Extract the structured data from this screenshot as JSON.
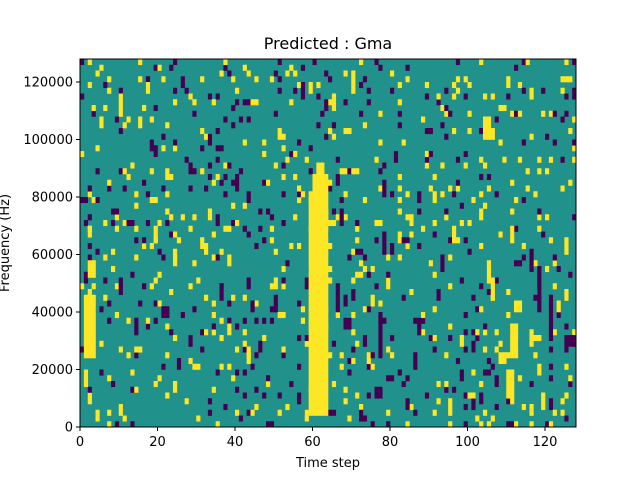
{
  "chart_data": {
    "type": "heatmap",
    "title": "Predicted : Gma",
    "xlabel": "Time step",
    "ylabel": "Frequency (Hz)",
    "xlim": [
      0,
      128
    ],
    "ylim": [
      0,
      128000
    ],
    "xticks": [
      0,
      20,
      40,
      60,
      80,
      100,
      120
    ],
    "yticks": [
      0,
      20000,
      40000,
      60000,
      80000,
      100000,
      120000
    ],
    "n_time_steps": 128,
    "n_freq_bins": 64,
    "values_encoding": "binary spectrogram mask: 0 = background, +1 = yellow cell, -1 = dark purple cell",
    "colors": {
      "background": "#21918c",
      "positive": "#fde725",
      "negative": "#440154"
    },
    "segments": [
      {
        "value": 1,
        "t": [
          59,
          64
        ],
        "f": [
          4000,
          82000
        ]
      },
      {
        "value": 1,
        "t": [
          60,
          64
        ],
        "f": [
          82000,
          88000
        ]
      },
      {
        "value": 1,
        "t": [
          61,
          63
        ],
        "f": [
          88000,
          92000
        ]
      },
      {
        "value": 1,
        "t": [
          58,
          59
        ],
        "f": [
          2000,
          6000
        ]
      },
      {
        "value": -1,
        "t": [
          77,
          78
        ],
        "f": [
          24000,
          40000
        ]
      },
      {
        "value": -1,
        "t": [
          78,
          79
        ],
        "f": [
          60000,
          68000
        ]
      },
      {
        "value": -1,
        "t": [
          118,
          119
        ],
        "f": [
          40000,
          56000
        ]
      },
      {
        "value": -1,
        "t": [
          121,
          122
        ],
        "f": [
          30000,
          46000
        ]
      },
      {
        "value": -1,
        "t": [
          116,
          117
        ],
        "f": [
          54000,
          62000
        ]
      },
      {
        "value": -1,
        "t": [
          125,
          128
        ],
        "f": [
          28000,
          32000
        ]
      },
      {
        "value": -1,
        "t": [
          21,
          23
        ],
        "f": [
          38000,
          42000
        ]
      },
      {
        "value": -1,
        "t": [
          66,
          67
        ],
        "f": [
          42000,
          50000
        ]
      },
      {
        "value": -1,
        "t": [
          70,
          71
        ],
        "f": [
          44000,
          48000
        ]
      },
      {
        "value": -1,
        "t": [
          73,
          74
        ],
        "f": [
          28000,
          32000
        ]
      },
      {
        "value": -1,
        "t": [
          68,
          70
        ],
        "f": [
          34000,
          38000
        ]
      },
      {
        "value": -1,
        "t": [
          76,
          78
        ],
        "f": [
          10000,
          14000
        ]
      },
      {
        "value": -1,
        "t": [
          80,
          81
        ],
        "f": [
          60000,
          64000
        ]
      },
      {
        "value": -1,
        "t": [
          72,
          73
        ],
        "f": [
          2000,
          6000
        ]
      },
      {
        "value": 1,
        "t": [
          1,
          4
        ],
        "f": [
          24000,
          46000
        ]
      },
      {
        "value": 1,
        "t": [
          2,
          4
        ],
        "f": [
          52000,
          58000
        ]
      },
      {
        "value": 1,
        "t": [
          1,
          2
        ],
        "f": [
          14000,
          20000
        ]
      },
      {
        "value": 1,
        "t": [
          2,
          3
        ],
        "f": [
          66000,
          70000
        ]
      },
      {
        "value": 1,
        "t": [
          111,
          113
        ],
        "f": [
          24000,
          36000
        ]
      },
      {
        "value": 1,
        "t": [
          112,
          114
        ],
        "f": [
          40000,
          44000
        ]
      },
      {
        "value": 1,
        "t": [
          110,
          112
        ],
        "f": [
          10000,
          20000
        ]
      },
      {
        "value": 1,
        "t": [
          111,
          112
        ],
        "f": [
          64000,
          70000
        ]
      },
      {
        "value": 1,
        "t": [
          106,
          107
        ],
        "f": [
          44000,
          52000
        ]
      },
      {
        "value": 1,
        "t": [
          105,
          106
        ],
        "f": [
          50000,
          56000
        ]
      },
      {
        "value": 1,
        "t": [
          116,
          117
        ],
        "f": [
          28000,
          34000
        ]
      },
      {
        "value": 1,
        "t": [
          108,
          110
        ],
        "f": [
          22000,
          26000
        ]
      },
      {
        "value": 1,
        "t": [
          104,
          106
        ],
        "f": [
          100000,
          108000
        ]
      },
      {
        "value": 1,
        "t": [
          70,
          71
        ],
        "f": [
          116000,
          124000
        ]
      },
      {
        "value": 1,
        "t": [
          65,
          66
        ],
        "f": [
          110000,
          116000
        ]
      },
      {
        "value": 1,
        "t": [
          43,
          44
        ],
        "f": [
          22000,
          28000
        ]
      },
      {
        "value": 1,
        "t": [
          24,
          25
        ],
        "f": [
          56000,
          62000
        ]
      },
      {
        "value": 1,
        "t": [
          19,
          20
        ],
        "f": [
          64000,
          70000
        ]
      },
      {
        "value": 1,
        "t": [
          5,
          6
        ],
        "f": [
          104000,
          108000
        ]
      },
      {
        "value": 1,
        "t": [
          10,
          11
        ],
        "f": [
          110000,
          116000
        ]
      },
      {
        "value": 1,
        "t": [
          17,
          18
        ],
        "f": [
          116000,
          120000
        ]
      },
      {
        "value": 1,
        "t": [
          38,
          39
        ],
        "f": [
          32000,
          36000
        ]
      },
      {
        "value": 1,
        "t": [
          31,
          32
        ],
        "f": [
          62000,
          66000
        ]
      },
      {
        "value": 1,
        "t": [
          96,
          97
        ],
        "f": [
          64000,
          70000
        ]
      },
      {
        "value": 1,
        "t": [
          98,
          99
        ],
        "f": [
          28000,
          32000
        ]
      },
      {
        "value": 1,
        "t": [
          85,
          86
        ],
        "f": [
          70000,
          74000
        ]
      },
      {
        "value": 1,
        "t": [
          91,
          92
        ],
        "f": [
          78000,
          82000
        ]
      },
      {
        "value": 1,
        "t": [
          103,
          104
        ],
        "f": [
          72000,
          76000
        ]
      },
      {
        "value": 1,
        "t": [
          119,
          120
        ],
        "f": [
          6000,
          12000
        ]
      },
      {
        "value": 1,
        "t": [
          125,
          126
        ],
        "f": [
          44000,
          48000
        ]
      },
      {
        "value": 1,
        "t": [
          123,
          124
        ],
        "f": [
          40000,
          44000
        ]
      },
      {
        "value": -1,
        "t": [
          25,
          26
        ],
        "f": [
          20000,
          24000
        ]
      },
      {
        "value": -1,
        "t": [
          10,
          11
        ],
        "f": [
          46000,
          52000
        ]
      },
      {
        "value": -1,
        "t": [
          14,
          15
        ],
        "f": [
          32000,
          38000
        ]
      },
      {
        "value": -1,
        "t": [
          36,
          37
        ],
        "f": [
          44000,
          50000
        ]
      },
      {
        "value": -1,
        "t": [
          44,
          45
        ],
        "f": [
          40000,
          44000
        ]
      },
      {
        "value": -1,
        "t": [
          50,
          51
        ],
        "f": [
          40000,
          46000
        ]
      },
      {
        "value": -1,
        "t": [
          40,
          41
        ],
        "f": [
          82000,
          86000
        ]
      },
      {
        "value": -1,
        "t": [
          33,
          34
        ],
        "f": [
          98000,
          102000
        ]
      },
      {
        "value": -1,
        "t": [
          28,
          29
        ],
        "f": [
          88000,
          92000
        ]
      },
      {
        "value": -1,
        "t": [
          19,
          20
        ],
        "f": [
          94000,
          98000
        ]
      },
      {
        "value": -1,
        "t": [
          51,
          52
        ],
        "f": [
          126000,
          128000
        ]
      },
      {
        "value": -1,
        "t": [
          26,
          27
        ],
        "f": [
          118000,
          122000
        ]
      },
      {
        "value": -1,
        "t": [
          86,
          87
        ],
        "f": [
          20000,
          26000
        ]
      },
      {
        "value": -1,
        "t": [
          87,
          88
        ],
        "f": [
          32000,
          38000
        ]
      },
      {
        "value": -1,
        "t": [
          92,
          93
        ],
        "f": [
          44000,
          48000
        ]
      },
      {
        "value": -1,
        "t": [
          101,
          102
        ],
        "f": [
          26000,
          30000
        ]
      },
      {
        "value": -1,
        "t": [
          103,
          104
        ],
        "f": [
          8000,
          12000
        ]
      },
      {
        "value": -1,
        "t": [
          84,
          85
        ],
        "f": [
          6000,
          10000
        ]
      },
      {
        "value": -1,
        "t": [
          63,
          64
        ],
        "f": [
          110000,
          114000
        ]
      },
      {
        "value": -1,
        "t": [
          57,
          58
        ],
        "f": [
          116000,
          120000
        ]
      },
      {
        "value": -1,
        "t": [
          78,
          79
        ],
        "f": [
          80000,
          86000
        ]
      },
      {
        "value": -1,
        "t": [
          67,
          68
        ],
        "f": [
          70000,
          76000
        ]
      }
    ],
    "speckle": {
      "seed": 17,
      "pos_prob": 0.055,
      "neg_prob": 0.045
    }
  }
}
